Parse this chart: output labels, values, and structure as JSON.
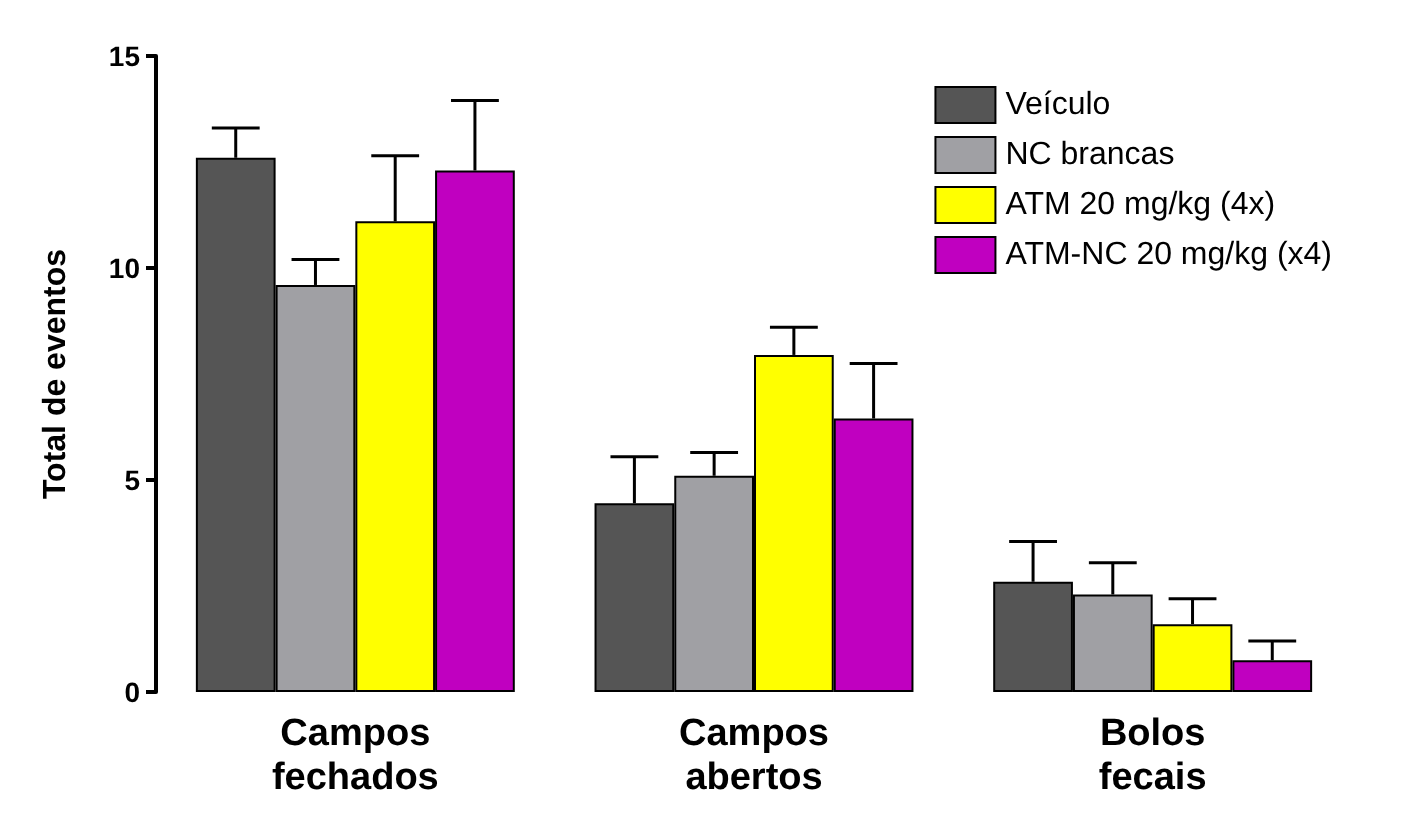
{
  "chart_data": {
    "type": "bar",
    "ylabel": "Total de eventos",
    "categories": [
      "Campos\nfechados",
      "Campos\nabertos",
      "Bolos\nfecais"
    ],
    "series": [
      {
        "name": "Veículo",
        "color": "#555555",
        "values": [
          12.6,
          4.45,
          2.6
        ],
        "errors": [
          [
            12.6,
            13.3
          ],
          [
            4.45,
            5.55
          ],
          [
            2.6,
            3.55
          ]
        ]
      },
      {
        "name": "NC brancas",
        "color": "#a0a0a4",
        "values": [
          9.6,
          5.1,
          2.3
        ],
        "errors": [
          [
            9.6,
            10.2
          ],
          [
            5.1,
            5.65
          ],
          [
            2.3,
            3.05
          ]
        ]
      },
      {
        "name": "ATM 20 mg/kg (4x)",
        "color": "#ffff00",
        "values": [
          11.1,
          7.95,
          1.6
        ],
        "errors": [
          [
            11.1,
            12.65
          ],
          [
            7.95,
            8.6
          ],
          [
            1.6,
            2.2
          ]
        ]
      },
      {
        "name": "ATM-NC 20 mg/kg (x4)",
        "color": "#c000c0",
        "values": [
          12.3,
          6.45,
          0.75
        ],
        "errors": [
          [
            12.3,
            13.95
          ],
          [
            6.45,
            7.75
          ],
          [
            0.75,
            1.2
          ]
        ]
      }
    ],
    "ylim": [
      0,
      15
    ],
    "yticks": [
      0,
      5,
      10,
      15
    ],
    "grid": false,
    "legend": "top right"
  }
}
